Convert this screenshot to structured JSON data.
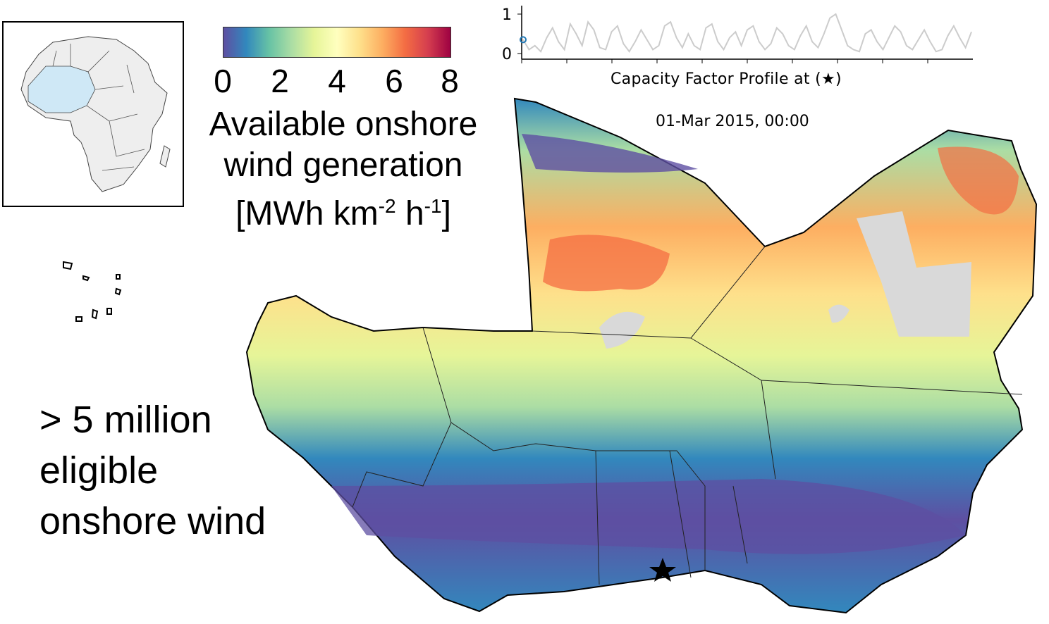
{
  "colorbar": {
    "ticks": [
      "0",
      "2",
      "4",
      "6",
      "8"
    ],
    "label_lines": [
      "Available onshore",
      "wind generation"
    ],
    "unit_prefix": "[MWh km",
    "unit_exp1": "-2",
    "unit_mid": " h",
    "unit_exp2": "-1",
    "unit_suffix": "]",
    "range": [
      0,
      8
    ],
    "colors": [
      "#5e4fa2",
      "#3288bd",
      "#66c2a5",
      "#abdda4",
      "#e6f598",
      "#ffffbf",
      "#fee08b",
      "#fdae61",
      "#f46d43",
      "#d53e4f",
      "#9e0142"
    ]
  },
  "note": {
    "lines": [
      "> 5 million",
      "eligible",
      "onshore wind"
    ]
  },
  "profile_chart": {
    "caption": "Capacity Factor Profile at (★)",
    "y_ticks": [
      "0",
      "1"
    ],
    "timestamp": "01-Mar 2015, 00:00",
    "line_color": "#cccccc",
    "marker_color": "#1f77b4"
  },
  "chart_data": {
    "type": "line",
    "xlabel": "Capacity Factor Profile at (★)",
    "ylabel": "",
    "ylim": [
      0,
      1
    ],
    "series": [
      {
        "values": [
          0.35,
          0.1,
          0.2,
          0.05,
          0.4,
          0.65,
          0.3,
          0.1,
          0.75,
          0.5,
          0.2,
          0.8,
          0.6,
          0.15,
          0.1,
          0.55,
          0.7,
          0.25,
          0.05,
          0.3,
          0.6,
          0.35,
          0.1,
          0.2,
          0.7,
          0.8,
          0.4,
          0.15,
          0.5,
          0.2,
          0.1,
          0.65,
          0.75,
          0.3,
          0.1,
          0.4,
          0.55,
          0.2,
          0.6,
          0.7,
          0.3,
          0.1,
          0.25,
          0.65,
          0.5,
          0.2,
          0.1,
          0.45,
          0.7,
          0.3,
          0.15,
          0.5,
          0.9,
          1.0,
          0.6,
          0.2,
          0.1,
          0.05,
          0.5,
          0.6,
          0.3,
          0.1,
          0.4,
          0.7,
          0.55,
          0.2,
          0.1,
          0.35,
          0.6,
          0.3,
          0.05,
          0.1,
          0.45,
          0.7,
          0.4,
          0.15,
          0.55
        ]
      }
    ]
  },
  "inset": {
    "highlight_color": "#cfe8f6",
    "land_color": "#eeeeee"
  },
  "map": {
    "missing_color": "#d9d9d9",
    "marker": "star"
  }
}
